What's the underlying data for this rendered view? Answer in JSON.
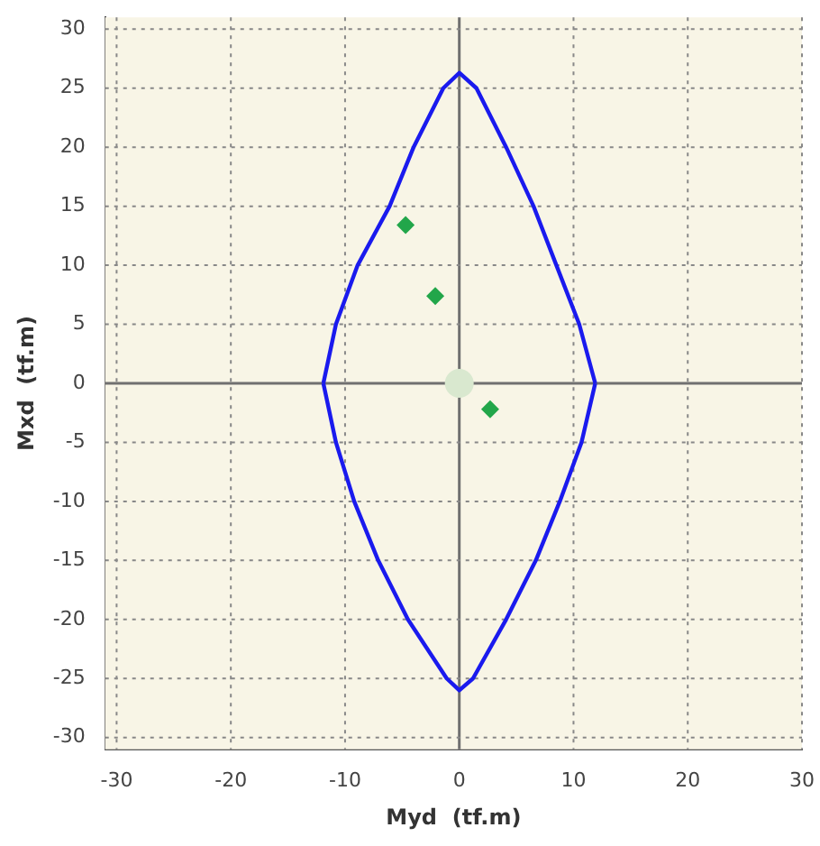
{
  "chart_data": {
    "type": "scatter",
    "xlabel": "Myd  (tf.m)",
    "ylabel": "Mxd  (tf.m)",
    "xlim": [
      -31,
      30
    ],
    "ylim": [
      -31,
      31
    ],
    "xticks": [
      -30,
      -20,
      -10,
      0,
      10,
      20,
      30
    ],
    "yticks": [
      -30,
      -25,
      -20,
      -15,
      -10,
      -5,
      0,
      5,
      10,
      15,
      20,
      25,
      30
    ],
    "grid": true,
    "legend": false,
    "series": [
      {
        "type": "line",
        "color": "#1a1aee",
        "marker": "none",
        "x": [
          -11.9,
          -10.8,
          -8.9,
          -6.1,
          -4.0,
          -1.4,
          0,
          1.5,
          4.1,
          6.5,
          8.5,
          10.5,
          11.9,
          null,
          -11.9,
          -10.8,
          -9.2,
          -7.1,
          -4.5,
          -1.1,
          0,
          1.2,
          4.1,
          6.7,
          8.8,
          10.7,
          11.9
        ],
        "values": [
          0,
          5,
          10,
          15,
          20,
          25,
          26.3,
          25,
          20,
          15,
          10,
          5,
          0,
          null,
          0,
          -5,
          -10,
          -15,
          -20,
          -25,
          -26,
          -25,
          -20,
          -15,
          -10,
          -5,
          0
        ]
      },
      {
        "type": "scatter",
        "color": "#d9e8cf",
        "marker": "circle",
        "x": [
          0
        ],
        "values": [
          0
        ]
      },
      {
        "type": "scatter",
        "color": "#22a64a",
        "marker": "diamond",
        "x": [
          -4.7,
          -2.1,
          2.7
        ],
        "values": [
          13.4,
          7.4,
          -2.2
        ]
      }
    ]
  }
}
